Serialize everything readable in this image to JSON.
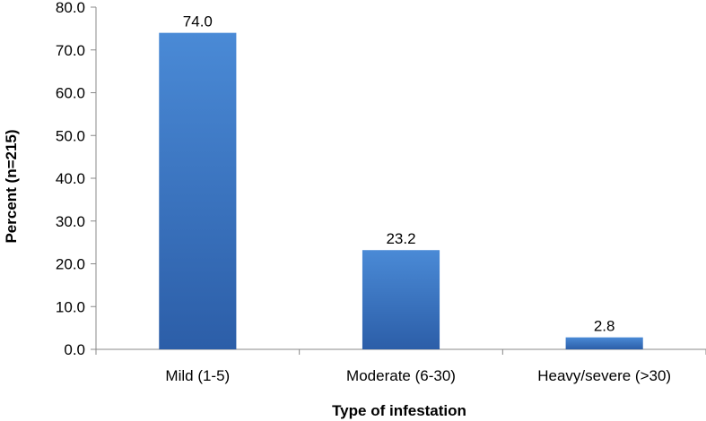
{
  "chart_data": {
    "type": "bar",
    "title": "",
    "xlabel": "Type of infestation",
    "ylabel": "Percent (n=215)",
    "categories": [
      "Mild (1-5)",
      "Moderate (6-30)",
      "Heavy/severe (>30)"
    ],
    "values": [
      74.0,
      23.2,
      2.8
    ],
    "data_labels": [
      "74.0",
      "23.2",
      "2.8"
    ],
    "ylim": [
      0,
      80
    ],
    "yticks": [
      "0.0",
      "10.0",
      "20.0",
      "30.0",
      "40.0",
      "50.0",
      "60.0",
      "70.0",
      "80.0"
    ],
    "grid": false,
    "legend": "none",
    "bar_color_top": "#4a8ad6",
    "bar_color_bottom": "#2c5ea8",
    "axis_color": "#888888"
  }
}
